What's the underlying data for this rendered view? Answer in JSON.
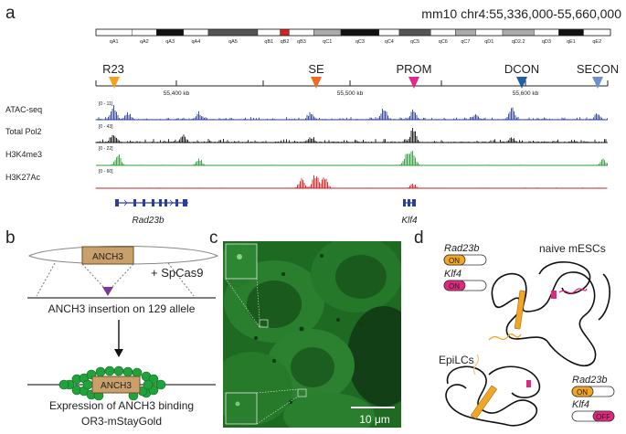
{
  "panel_a": {
    "letter": "a",
    "locus": "mm10 chr4:55,336,000-55,660,000",
    "bands": [
      {
        "label": "qA1",
        "shade": "white"
      },
      {
        "label": "qA2",
        "shade": "white"
      },
      {
        "label": "qA3",
        "shade": "black"
      },
      {
        "label": "qA4",
        "shade": "white"
      },
      {
        "label": "qA5",
        "shade": "dark"
      },
      {
        "label": "qB1",
        "shade": "white"
      },
      {
        "label": "qB2",
        "shade": "red"
      },
      {
        "label": "qB3",
        "shade": "white"
      },
      {
        "label": "qC1",
        "shade": "gray"
      },
      {
        "label": "qC3",
        "shade": "black"
      },
      {
        "label": "qC4",
        "shade": "white"
      },
      {
        "label": "qC5",
        "shade": "dark"
      },
      {
        "label": "qC6",
        "shade": "white"
      },
      {
        "label": "qC7",
        "shade": "gray"
      },
      {
        "label": "qD1",
        "shade": "white"
      },
      {
        "label": "qD2.2",
        "shade": "gray"
      },
      {
        "label": "qD3",
        "shade": "white"
      },
      {
        "label": "qE1",
        "shade": "black"
      },
      {
        "label": "qE2",
        "shade": "white"
      }
    ],
    "scale_ticks": [
      "55,400 kb",
      "55,500 kb",
      "55,600 kb"
    ],
    "markers": [
      {
        "label": "R23",
        "color": "#f4a21d"
      },
      {
        "label": "SE",
        "color": "#ef6a23"
      },
      {
        "label": "PROM",
        "color": "#e0288f"
      },
      {
        "label": "DCON",
        "color": "#1f5fa8"
      },
      {
        "label": "SECON",
        "color": "#6d92c9"
      }
    ],
    "tracks": [
      {
        "name": "ATAC-seq",
        "range": "[0 - 11]",
        "color": "#2a3f9b"
      },
      {
        "name": "Total Pol2",
        "range": "[0 - 43]",
        "color": "#111111"
      },
      {
        "name": "H3K4me3",
        "range": "[0 - 22]",
        "color": "#2e9c3a"
      },
      {
        "name": "H3K27Ac",
        "range": "[0 - 60]",
        "color": "#cc1f1f"
      }
    ],
    "genes": [
      "Rad23b",
      "Klf4"
    ]
  },
  "panel_b": {
    "letter": "b",
    "box_label": "ANCH3",
    "cas": "+ SpCas9",
    "insertion": "ANCH3 insertion on 129 allele",
    "caption_line1": "Expression of ANCH3 binding",
    "caption_line2": "OR3-mStayGold"
  },
  "panel_c": {
    "letter": "c",
    "scalebar": "10 μm"
  },
  "panel_d": {
    "letter": "d",
    "top_title": "naive mESCs",
    "bottom_title": "EpiLCs",
    "gene1": "Rad23b",
    "gene2": "Klf4",
    "top_gene1_state": "ON",
    "top_gene2_state": "ON",
    "bottom_gene1_state": "ON",
    "bottom_gene2_state": "OFF",
    "colors": {
      "rad23b": "#f2a624",
      "klf4": "#e0287e"
    }
  }
}
